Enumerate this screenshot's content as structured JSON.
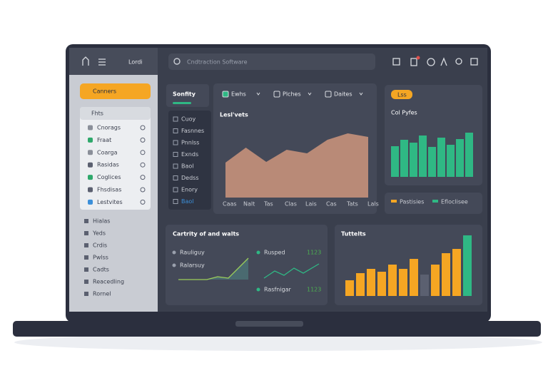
{
  "header": {
    "brand": "Lordi",
    "search": "Cndtraction Software"
  },
  "sidebar": {
    "button": "Canners",
    "group_title": "Fhts",
    "group_items": [
      {
        "label": "Cnorags",
        "color": "#8a8f99"
      },
      {
        "label": "Fraat",
        "color": "#2ea86b"
      },
      {
        "label": "Coarga",
        "color": "#8a8f99"
      },
      {
        "label": "Rasidas",
        "color": "#5b6070"
      },
      {
        "label": "Coglices",
        "color": "#2ea86b"
      },
      {
        "label": "Fhsdisas",
        "color": "#5b6070"
      },
      {
        "label": "Lestvites",
        "color": "#3b8fd9"
      }
    ],
    "items": [
      "Hialas",
      "Yeds",
      "Crdis",
      "Pwlss",
      "Cadts",
      "Reacedling",
      "Rornel"
    ]
  },
  "main": {
    "tab": "Sonfity",
    "list": [
      "Cuoy",
      "Fasnnes",
      "Pnnlss",
      "Exnds",
      "Baol",
      "Dedss",
      "Enory",
      "Baol"
    ],
    "filters": [
      "Ewhs",
      "Plches",
      "Daites"
    ],
    "area_chart": {
      "title": "Lesl'vets",
      "categories": [
        "Caas",
        "Nalt",
        "Tas",
        "Clas",
        "Lais",
        "Cas",
        "Tats",
        "Lals"
      ],
      "values": [
        49,
        70,
        50,
        67,
        62,
        81,
        90,
        85
      ],
      "color": "#b98a77"
    }
  },
  "cost_card": {
    "tag": "Lss",
    "title": "Col Pyfes",
    "values": [
      43,
      52,
      48,
      58,
      42,
      55,
      45,
      53,
      62
    ],
    "color": "#2fb884"
  },
  "legend": [
    {
      "label": "Pastisies",
      "color": "#f5a623"
    },
    {
      "label": "Efloclisee",
      "color": "#2fb884"
    }
  ],
  "activity": {
    "title": "Cartrity of and walts",
    "rows": [
      {
        "label": "Rauliguy"
      },
      {
        "label": "Ralarsuy"
      },
      {
        "label": "Rusped",
        "value": "1123"
      },
      {
        "label": "Rasfnigar",
        "value": "1123"
      }
    ]
  },
  "totals": {
    "title": "Tuttelts",
    "values": [
      22,
      32,
      38,
      34,
      44,
      38,
      52,
      30,
      44,
      60,
      66,
      85
    ],
    "colors": [
      "#f5a623",
      "#f5a623",
      "#f5a623",
      "#f5a623",
      "#f5a623",
      "#f5a623",
      "#f5a623",
      "#5b6070",
      "#f5a623",
      "#f5a623",
      "#f5a623",
      "#2fb884"
    ]
  }
}
